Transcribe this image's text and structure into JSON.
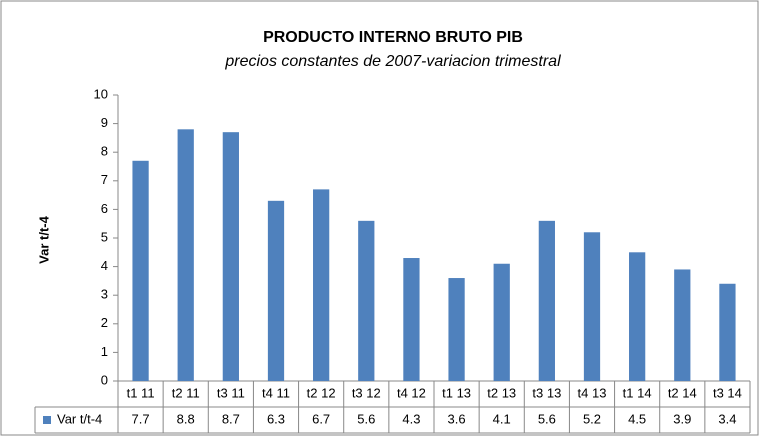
{
  "chart_data": {
    "type": "bar",
    "title": "PRODUCTO INTERNO BRUTO PIB",
    "subtitle": "precios constantes de 2007-variacion trimestral",
    "y_label": "Var t/t-4",
    "categories": [
      "t1 11",
      "t2 11",
      "t3 11",
      "t4 11",
      "t2 12",
      "t3 12",
      "t4 12",
      "t1 13",
      "t2 13",
      "t3 13",
      "t4 13",
      "t1 14",
      "t2 14",
      "t3 14"
    ],
    "series": [
      {
        "name": "Var t/t-4",
        "color": "#4f81bd",
        "values": [
          7.7,
          8.8,
          8.7,
          6.3,
          6.7,
          5.6,
          4.3,
          3.6,
          4.1,
          5.6,
          5.2,
          4.5,
          3.9,
          3.4
        ]
      }
    ],
    "ylim": [
      0,
      10
    ],
    "yticks": [
      0,
      1,
      2,
      3,
      4,
      5,
      6,
      7,
      8,
      9,
      10
    ],
    "grid": false
  }
}
